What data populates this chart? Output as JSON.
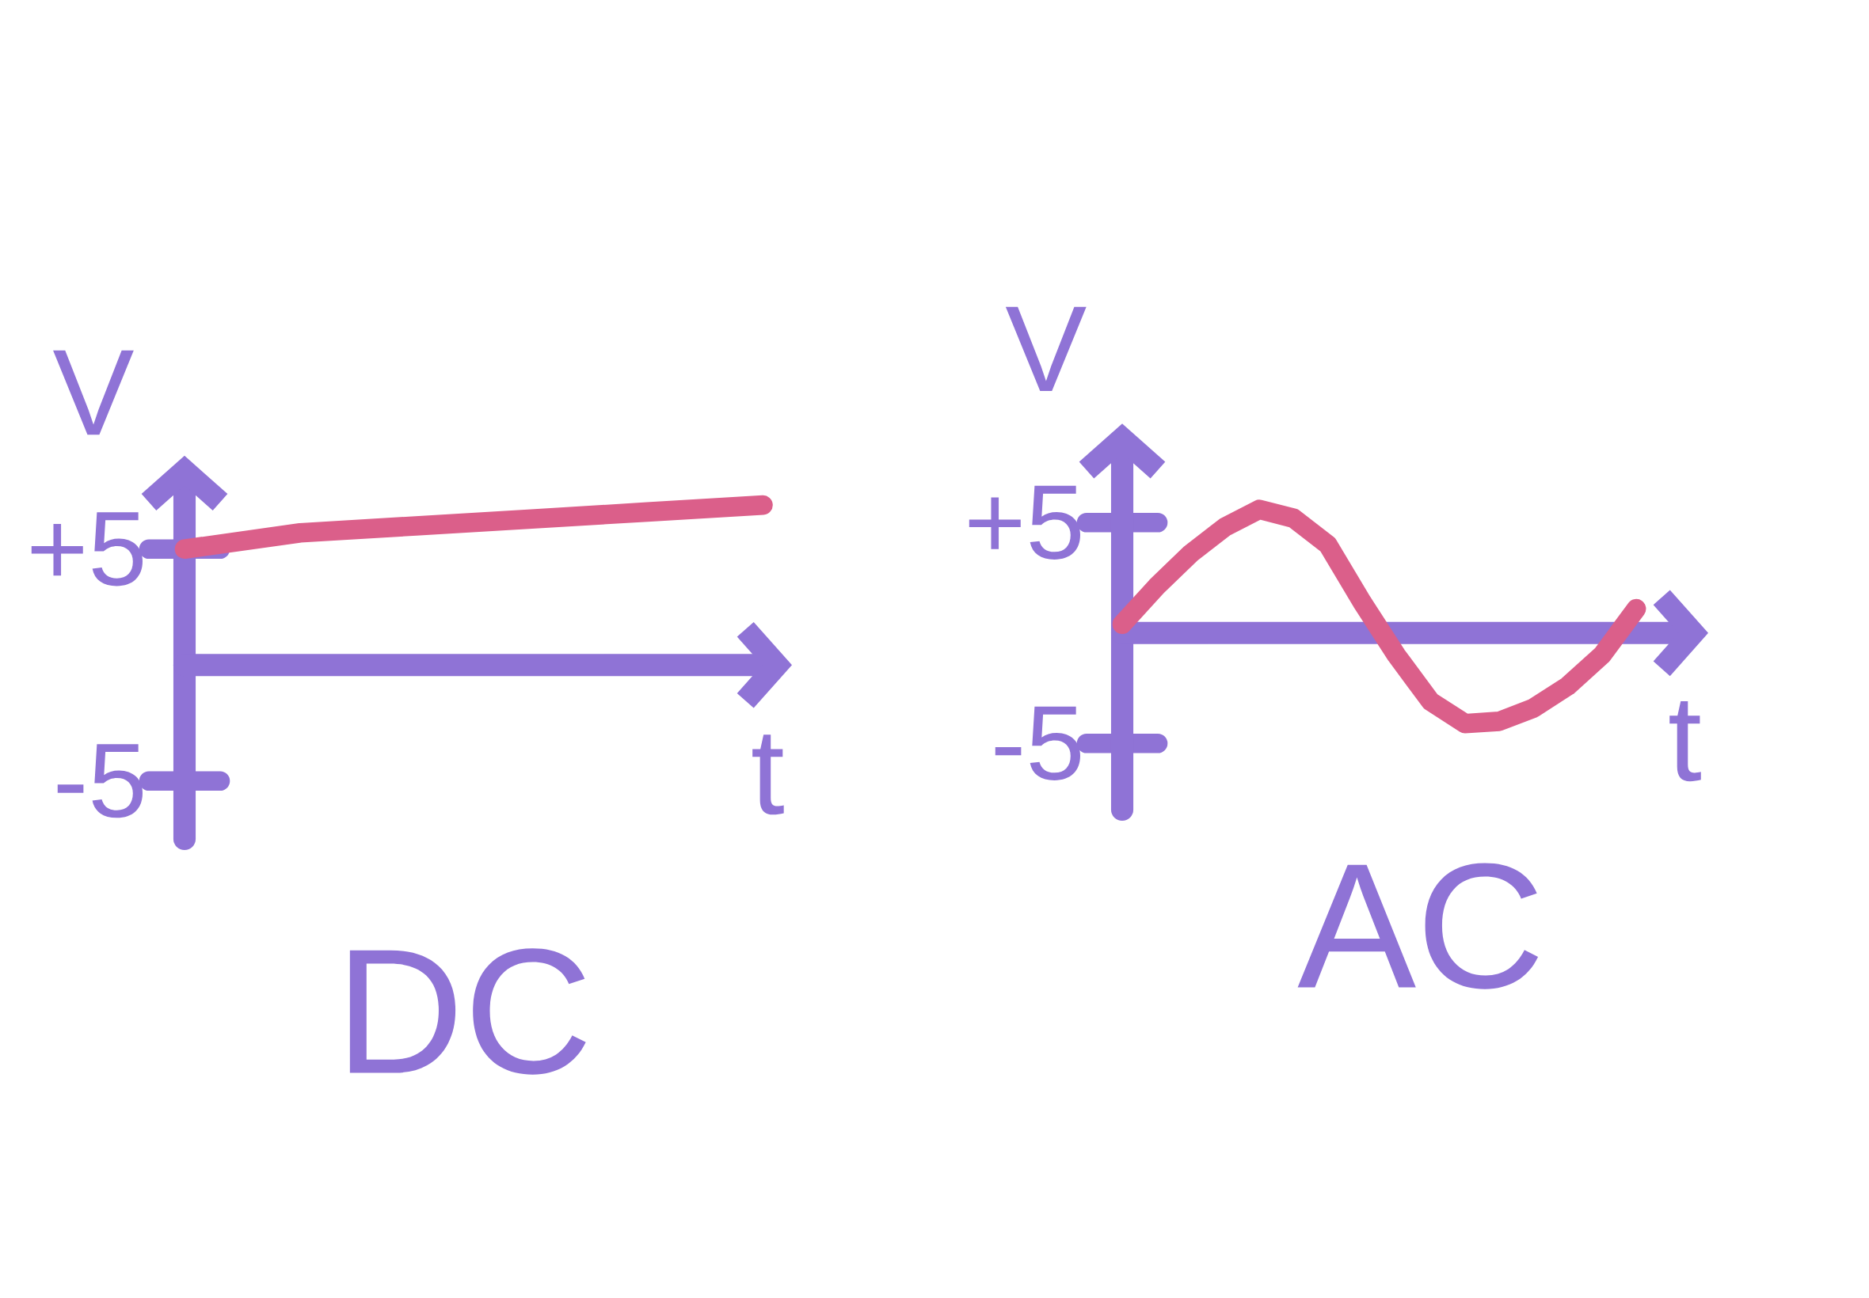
{
  "chart_data": [
    {
      "type": "line",
      "title": "DC",
      "xlabel": "t",
      "ylabel": "V",
      "categories": [
        null,
        null,
        null,
        null,
        null,
        null
      ],
      "series": [
        {
          "color": "#db5f8a",
          "values": [
            5,
            5.7,
            6,
            6.3,
            6.6,
            6.9
          ]
        }
      ],
      "ylim": [
        -7.5,
        7.9
      ],
      "yticks": [
        {
          "value": 5,
          "label": "+5"
        },
        -5
      ],
      "ref_lines": [
        {
          "axis": "y",
          "value": 0,
          "color": "#8f73d6"
        }
      ],
      "marker": "none",
      "line_style": "solid"
    },
    {
      "type": "line",
      "title": "AC",
      "xlabel": "t",
      "ylabel": "V",
      "categories": [
        null,
        null,
        null,
        null,
        null,
        null,
        null,
        null,
        null,
        null,
        null,
        null,
        null,
        null,
        null,
        null
      ],
      "series": [
        {
          "color": "#db5f8a",
          "values": [
            0.4,
            2.1,
            3.6,
            4.8,
            5.6,
            5.2,
            4,
            1.4,
            -1,
            -3.1,
            -4.1,
            -4,
            -3.4,
            -2.4,
            -1,
            1.1
          ]
        }
      ],
      "ylim": [
        -8,
        8.3
      ],
      "yticks": [
        {
          "value": 5,
          "label": "+5"
        },
        -5
      ],
      "ref_lines": [
        {
          "axis": "y",
          "value": 0,
          "color": "#8f73d6"
        }
      ],
      "marker": "none",
      "line_style": "solid"
    }
  ]
}
